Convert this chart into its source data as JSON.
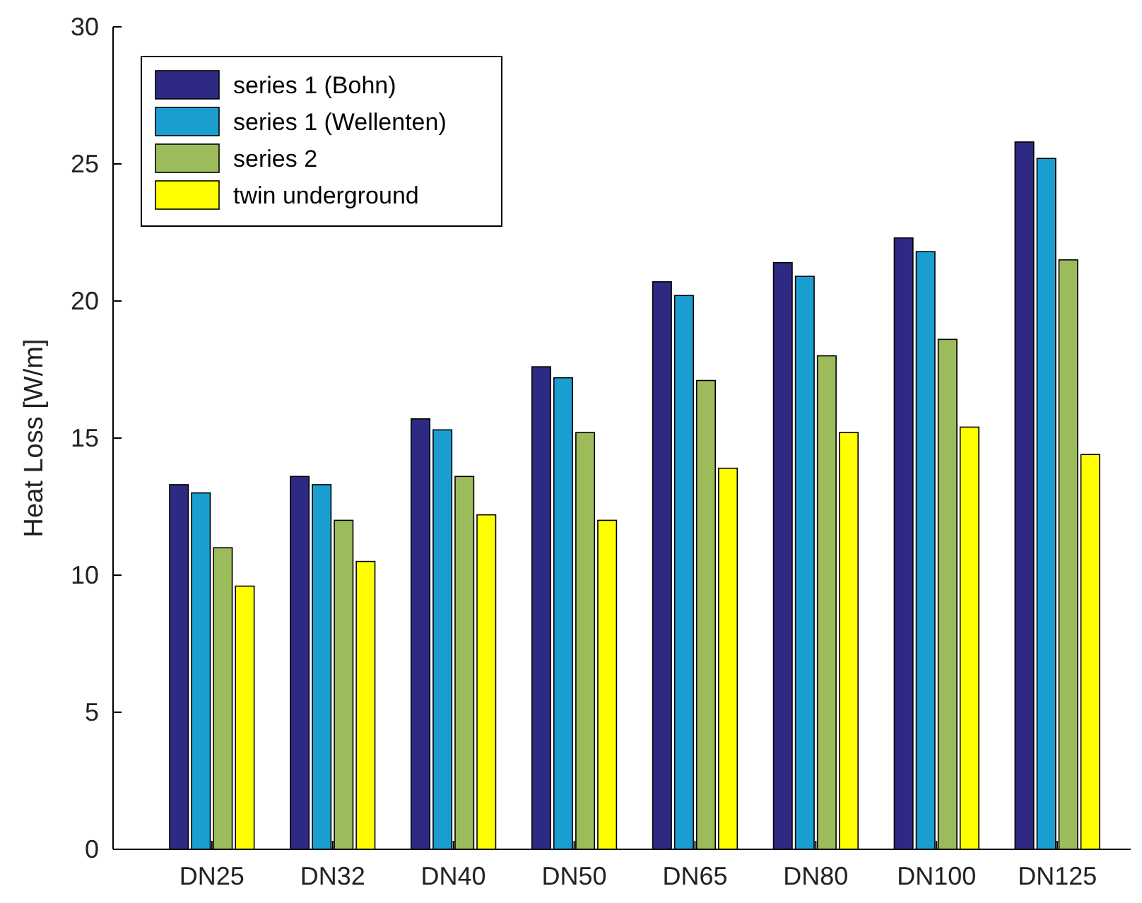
{
  "chart_data": {
    "type": "bar",
    "ylabel": "Heat Loss [W/m]",
    "categories": [
      "DN25",
      "DN32",
      "DN40",
      "DN50",
      "DN65",
      "DN80",
      "DN100",
      "DN125"
    ],
    "series": [
      {
        "name": "series 1 (Bohn)",
        "color": "#2e2a84",
        "values": [
          13.3,
          13.6,
          15.7,
          17.6,
          20.7,
          21.4,
          22.3,
          25.8
        ]
      },
      {
        "name": "series 1 (Wellenten)",
        "color": "#1a9ed0",
        "values": [
          13.0,
          13.3,
          15.3,
          17.2,
          20.2,
          20.9,
          21.8,
          25.2
        ]
      },
      {
        "name": "series 2",
        "color": "#9cbb5a",
        "values": [
          11.0,
          12.0,
          13.6,
          15.2,
          17.1,
          18.0,
          18.6,
          21.5
        ]
      },
      {
        "name": "twin underground",
        "color": "#ffff00",
        "values": [
          9.6,
          10.5,
          12.2,
          12.0,
          13.9,
          15.2,
          15.4,
          14.4
        ]
      }
    ],
    "ylim": [
      0,
      30
    ],
    "yticks": [
      0,
      5,
      10,
      15,
      20,
      25,
      30
    ],
    "legend": "top left"
  }
}
